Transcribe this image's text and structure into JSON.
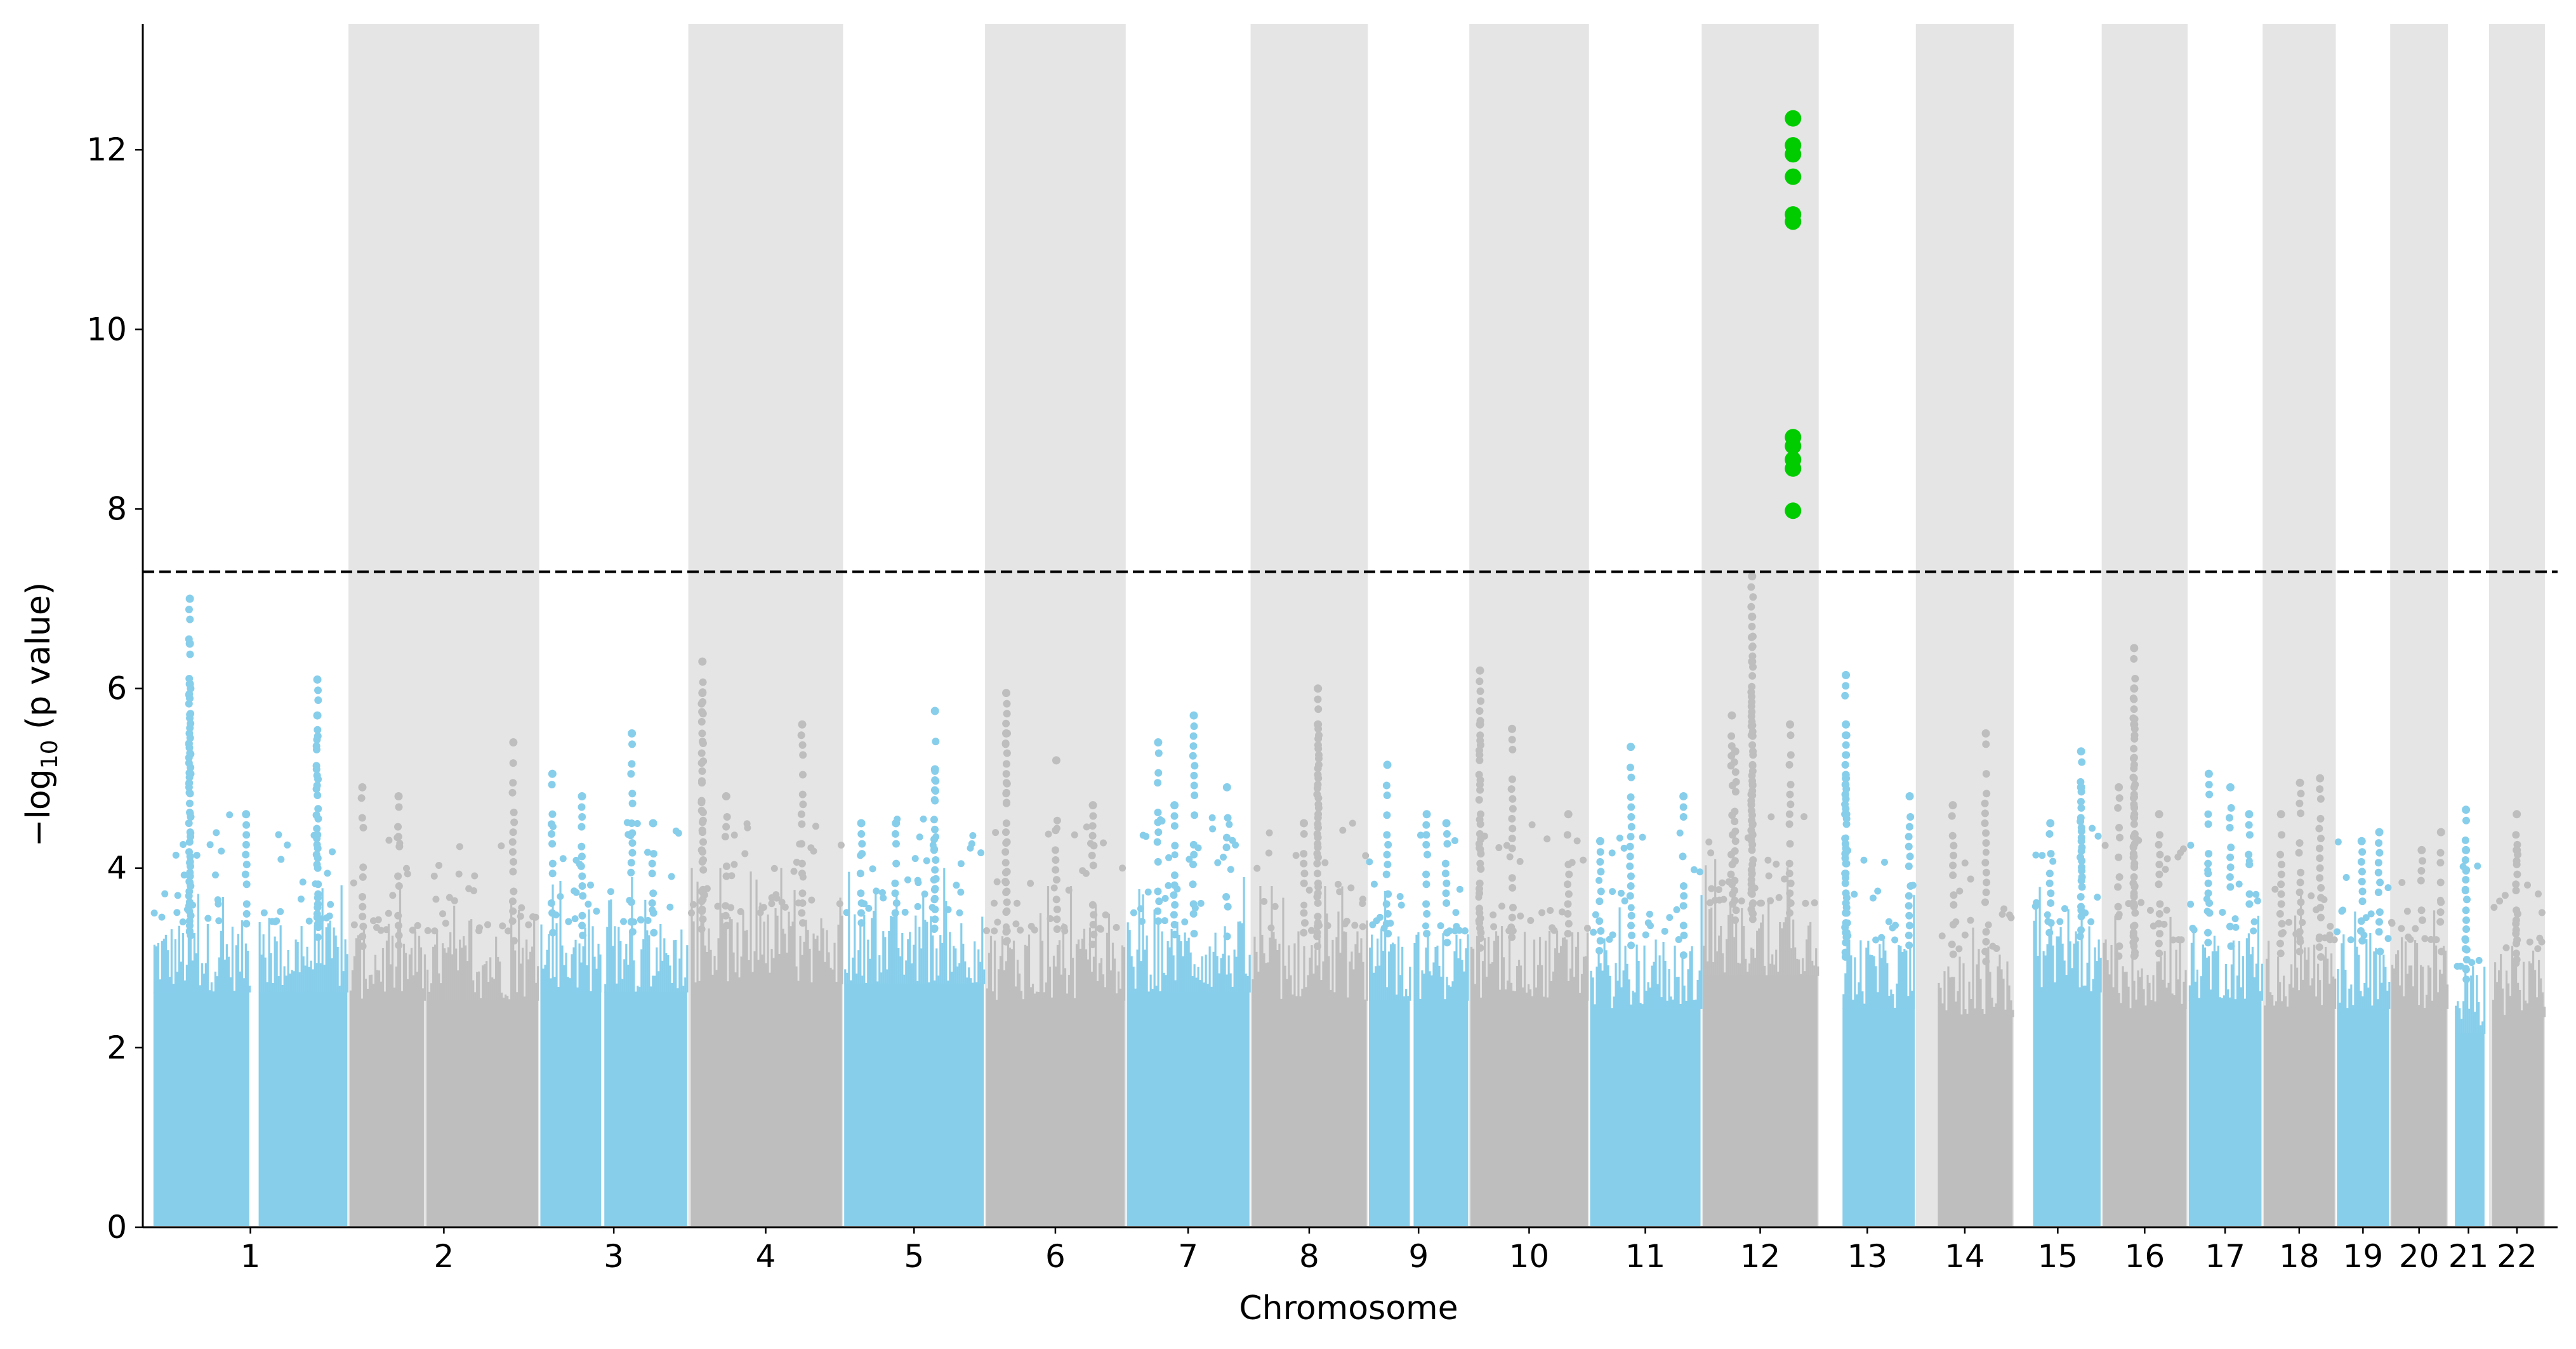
{
  "chart_data": {
    "type": "scatter",
    "subtype": "manhattan",
    "title": "",
    "xlabel": "Chromosome",
    "ylabel": "−log10 (p value)",
    "ylabel_parts": {
      "prefix": "−log",
      "subscript": "10",
      "suffix": " (p value)"
    },
    "ylim": [
      0,
      13.4
    ],
    "yticks": [
      0,
      2,
      4,
      6,
      8,
      10,
      12
    ],
    "grid": false,
    "legend": "none",
    "significance_threshold": 7.3,
    "threshold_style": "dashed",
    "colors": {
      "odd_chromosome": "#87ceeb",
      "even_chromosome": "#bebebe",
      "even_band": "#e5e5e5",
      "significant": "#00cc00",
      "threshold": "#000000"
    },
    "chromosomes": [
      {
        "label": "1",
        "start": 0,
        "end": 1046,
        "band": false,
        "bulk_max": 3.2,
        "gaps": [
          [
            517,
            567
          ]
        ],
        "peaks": [
          [
            200,
            7.0
          ],
          [
            200,
            6.5
          ],
          [
            200,
            6.05
          ],
          [
            880,
            6.1
          ],
          [
            880,
            5.7
          ],
          [
            500,
            4.6
          ]
        ]
      },
      {
        "label": "2",
        "start": 1046,
        "end": 2063,
        "band": true,
        "bulk_max": 3.1,
        "gaps": [
          [
            1448,
            1462
          ]
        ],
        "peaks": [
          [
            1313,
            4.8
          ],
          [
            1925,
            5.4
          ],
          [
            1120,
            4.9
          ]
        ]
      },
      {
        "label": "3",
        "start": 2063,
        "end": 2858,
        "band": false,
        "bulk_max": 3.2,
        "gaps": [
          [
            2393,
            2410
          ]
        ],
        "peaks": [
          [
            2133,
            5.05
          ],
          [
            2291,
            4.8
          ],
          [
            2557,
            5.5
          ],
          [
            2670,
            4.5
          ]
        ]
      },
      {
        "label": "4",
        "start": 2858,
        "end": 3683,
        "band": true,
        "bulk_max": 3.3,
        "gaps": [
          [
            2860,
            2871
          ]
        ],
        "peaks": [
          [
            2933,
            6.3
          ],
          [
            2933,
            5.95
          ],
          [
            3465,
            5.6
          ],
          [
            3060,
            4.8
          ]
        ]
      },
      {
        "label": "5",
        "start": 3683,
        "end": 4440,
        "band": false,
        "bulk_max": 3.3,
        "gaps": [],
        "peaks": [
          [
            4173,
            5.75
          ],
          [
            4173,
            5.1
          ],
          [
            3965,
            4.5
          ],
          [
            3780,
            4.5
          ]
        ]
      },
      {
        "label": "6",
        "start": 4440,
        "end": 5190,
        "band": true,
        "bulk_max": 3.1,
        "gaps": [],
        "peaks": [
          [
            4553,
            5.95
          ],
          [
            4553,
            5.5
          ],
          [
            4820,
            5.2
          ],
          [
            5015,
            4.7
          ]
        ]
      },
      {
        "label": "7",
        "start": 5190,
        "end": 5856,
        "band": false,
        "bulk_max": 3.2,
        "gaps": [],
        "peaks": [
          [
            5553,
            5.7
          ],
          [
            5363,
            5.4
          ],
          [
            5730,
            4.9
          ],
          [
            5450,
            4.7
          ]
        ]
      },
      {
        "label": "8",
        "start": 5856,
        "end": 6481,
        "band": true,
        "bulk_max": 3.1,
        "gaps": [],
        "peaks": [
          [
            6215,
            6.0
          ],
          [
            6215,
            5.6
          ],
          [
            6140,
            4.5
          ]
        ]
      },
      {
        "label": "9",
        "start": 6481,
        "end": 7022,
        "band": false,
        "bulk_max": 3.1,
        "gaps": [
          [
            6705,
            6725
          ]
        ],
        "peaks": [
          [
            6585,
            5.15
          ],
          [
            6795,
            4.6
          ],
          [
            6900,
            4.5
          ]
        ]
      },
      {
        "label": "10",
        "start": 7022,
        "end": 7660,
        "band": true,
        "bulk_max": 3.1,
        "gaps": [],
        "peaks": [
          [
            7079,
            6.2
          ],
          [
            7079,
            5.6
          ],
          [
            7250,
            5.55
          ],
          [
            7550,
            4.6
          ]
        ]
      },
      {
        "label": "11",
        "start": 7660,
        "end": 8261,
        "band": false,
        "bulk_max": 3.0,
        "gaps": [],
        "peaks": [
          [
            7883,
            5.35
          ],
          [
            8164,
            4.8
          ],
          [
            7720,
            4.3
          ]
        ]
      },
      {
        "label": "12",
        "start": 8261,
        "end": 8885,
        "band": true,
        "bulk_max": 3.4,
        "gaps": [],
        "peaks": [
          [
            8530,
            7.25
          ],
          [
            8530,
            6.8
          ],
          [
            8530,
            6.3
          ],
          [
            8422,
            5.7
          ],
          [
            8732,
            5.6
          ],
          [
            8440,
            5.3
          ]
        ]
      },
      {
        "label": "13",
        "start": 8885,
        "end": 9403,
        "band": false,
        "bulk_max": 3.0,
        "gaps": [
          [
            8885,
            9012
          ]
        ],
        "peaks": [
          [
            9030,
            6.15
          ],
          [
            9030,
            5.6
          ],
          [
            9030,
            5.0
          ],
          [
            9370,
            4.8
          ]
        ]
      },
      {
        "label": "14",
        "start": 9403,
        "end": 9925,
        "band": true,
        "bulk_max": 2.9,
        "gaps": [
          [
            9403,
            9520
          ]
        ],
        "peaks": [
          [
            9776,
            5.5
          ],
          [
            9600,
            4.7
          ]
        ]
      },
      {
        "label": "15",
        "start": 9925,
        "end": 10394,
        "band": false,
        "bulk_max": 3.2,
        "gaps": [
          [
            9925,
            10028
          ]
        ],
        "peaks": [
          [
            10284,
            5.3
          ],
          [
            10284,
            4.9
          ],
          [
            10120,
            4.5
          ]
        ]
      },
      {
        "label": "16",
        "start": 10394,
        "end": 10852,
        "band": true,
        "bulk_max": 3.0,
        "gaps": [],
        "peaks": [
          [
            10567,
            6.45
          ],
          [
            10567,
            6.0
          ],
          [
            10567,
            5.6
          ],
          [
            10485,
            4.9
          ],
          [
            10700,
            4.6
          ]
        ]
      },
      {
        "label": "17",
        "start": 10852,
        "end": 11252,
        "band": false,
        "bulk_max": 3.1,
        "gaps": [],
        "peaks": [
          [
            10965,
            5.05
          ],
          [
            11080,
            4.9
          ],
          [
            11180,
            4.6
          ]
        ]
      },
      {
        "label": "18",
        "start": 11252,
        "end": 11642,
        "band": true,
        "bulk_max": 3.0,
        "gaps": [],
        "peaks": [
          [
            11451,
            4.95
          ],
          [
            11558,
            5.0
          ],
          [
            11350,
            4.6
          ]
        ]
      },
      {
        "label": "19",
        "start": 11642,
        "end": 11932,
        "band": false,
        "bulk_max": 3.0,
        "gaps": [],
        "peaks": [
          [
            11874,
            4.4
          ],
          [
            11780,
            4.3
          ]
        ]
      },
      {
        "label": "20",
        "start": 11932,
        "end": 12240,
        "band": true,
        "bulk_max": 3.0,
        "gaps": [],
        "peaks": [
          [
            12203,
            4.4
          ],
          [
            12100,
            4.2
          ]
        ]
      },
      {
        "label": "21",
        "start": 12240,
        "end": 12459,
        "band": false,
        "bulk_max": 2.7,
        "gaps": [
          [
            12240,
            12277
          ],
          [
            12435,
            12459
          ]
        ],
        "peaks": [
          [
            12336,
            4.65
          ],
          [
            12336,
            4.2
          ]
        ]
      },
      {
        "label": "22",
        "start": 12459,
        "end": 12757,
        "band": true,
        "bulk_max": 2.9,
        "gaps": [
          [
            12459,
            12476
          ]
        ],
        "peaks": [
          [
            12607,
            4.6
          ],
          [
            12607,
            4.2
          ]
        ]
      }
    ],
    "significant_points": [
      {
        "chromosome": "12",
        "pos": 8748,
        "y": 12.35
      },
      {
        "chromosome": "12",
        "pos": 8748,
        "y": 12.05
      },
      {
        "chromosome": "12",
        "pos": 8748,
        "y": 11.95
      },
      {
        "chromosome": "12",
        "pos": 8748,
        "y": 11.7
      },
      {
        "chromosome": "12",
        "pos": 8748,
        "y": 11.28
      },
      {
        "chromosome": "12",
        "pos": 8748,
        "y": 11.2
      },
      {
        "chromosome": "12",
        "pos": 8748,
        "y": 8.8
      },
      {
        "chromosome": "12",
        "pos": 8748,
        "y": 8.7
      },
      {
        "chromosome": "12",
        "pos": 8748,
        "y": 8.55
      },
      {
        "chromosome": "12",
        "pos": 8748,
        "y": 8.45
      },
      {
        "chromosome": "12",
        "pos": 8748,
        "y": 7.98
      }
    ]
  }
}
